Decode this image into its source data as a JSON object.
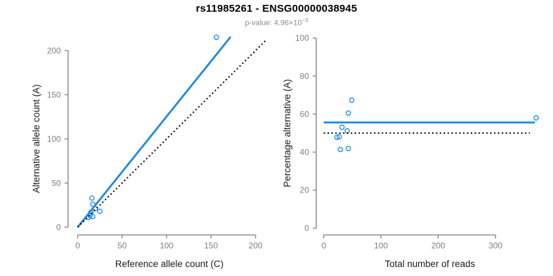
{
  "header": {
    "title": "rs11985261 - ENSG00000038945",
    "pvalue_label": "p-value: 4.96×10",
    "pvalue_exponent": "−3"
  },
  "colors": {
    "accent": "#1E87EB",
    "axis": "#8C8C8C",
    "tick_text": "#7E7E7E",
    "axis_title": "#1A1A1A",
    "title": "#000000",
    "subtitle": "#8C8C8C",
    "identity_line": "#000000",
    "background": "#FFFFFF"
  },
  "chart_data": [
    {
      "id": "allele-count-scatter",
      "type": "scatter",
      "xlabel": "Reference allele count (C)",
      "ylabel": "Alternative allele count (A)",
      "xticks": [
        0,
        50,
        100,
        150,
        200
      ],
      "yticks": [
        0,
        50,
        100,
        150,
        200
      ],
      "xlim": [
        0,
        213
      ],
      "ylim": [
        0,
        216
      ],
      "grid": false,
      "points": [
        [
          156,
          215
        ],
        [
          16,
          33
        ],
        [
          17,
          26
        ],
        [
          15,
          17
        ],
        [
          20,
          21
        ],
        [
          12,
          11
        ],
        [
          14,
          13
        ],
        [
          17,
          12
        ],
        [
          25,
          18
        ]
      ],
      "lines": [
        {
          "name": "fit-line",
          "style": "solid",
          "x1": 0,
          "y1": 0,
          "x2": 172,
          "y2": 215.6
        },
        {
          "name": "identity-line",
          "style": "dotted",
          "x1": 0,
          "y1": 0,
          "x2": 212,
          "y2": 212
        }
      ]
    },
    {
      "id": "percentage-alternative-scatter",
      "type": "scatter",
      "xlabel": "Total number of reads",
      "ylabel": "Percentage alternative (A)",
      "xticks": [
        0,
        100,
        200,
        300
      ],
      "yticks": [
        0,
        20,
        40,
        60,
        80,
        100
      ],
      "xlim": [
        0,
        372
      ],
      "ylim": [
        0,
        100
      ],
      "grid": false,
      "points": [
        [
          371,
          58.0
        ],
        [
          49,
          67.3
        ],
        [
          43,
          60.5
        ],
        [
          32,
          53.1
        ],
        [
          41,
          51.2
        ],
        [
          23,
          47.8
        ],
        [
          27,
          48.1
        ],
        [
          29,
          41.4
        ],
        [
          43,
          41.9
        ]
      ],
      "lines": [
        {
          "name": "fit-line",
          "style": "solid",
          "x1": 0,
          "y1": 55.6,
          "x2": 369,
          "y2": 55.6
        },
        {
          "name": "identity-line",
          "style": "dotted",
          "x1": 0,
          "y1": 50,
          "x2": 360,
          "y2": 50
        }
      ]
    }
  ]
}
